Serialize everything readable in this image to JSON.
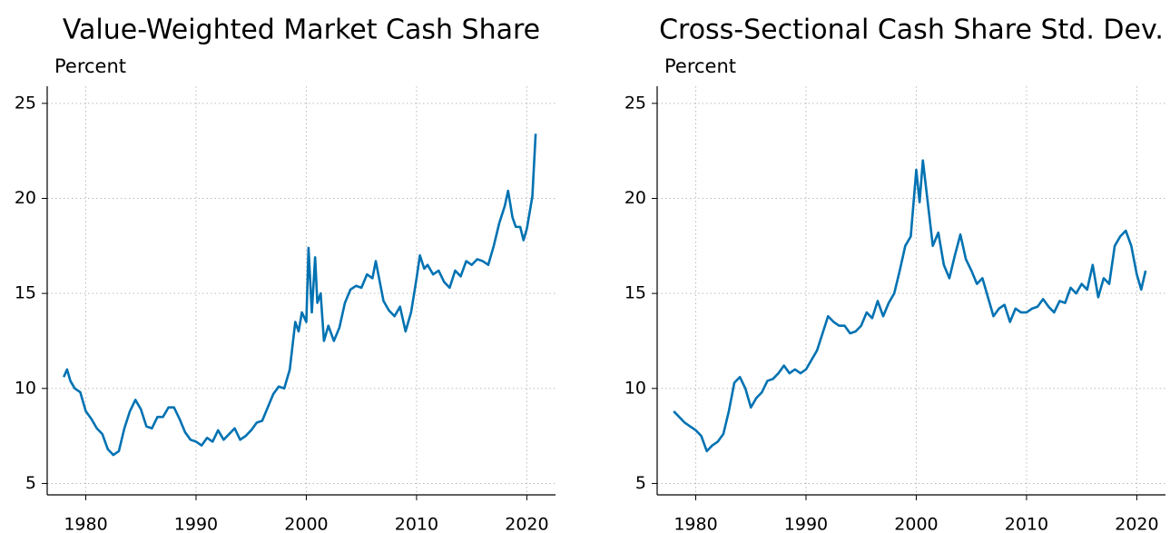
{
  "chart_data": [
    {
      "type": "line",
      "title": "Value-Weighted Market Cash Share",
      "y_label": "Percent",
      "x": [
        1978,
        1978.3,
        1978.6,
        1979,
        1979.5,
        1980,
        1980.5,
        1981,
        1981.5,
        1982,
        1982.5,
        1983,
        1983.5,
        1984,
        1984.5,
        1985,
        1985.5,
        1986,
        1986.5,
        1987,
        1987.5,
        1988,
        1988.5,
        1989,
        1989.5,
        1990,
        1990.5,
        1991,
        1991.5,
        1992,
        1992.5,
        1993,
        1993.5,
        1994,
        1994.5,
        1995,
        1995.5,
        1996,
        1996.5,
        1997,
        1997.5,
        1998,
        1998.5,
        1999,
        1999.3,
        1999.6,
        2000,
        2000.2,
        2000.5,
        2000.8,
        2001,
        2001.3,
        2001.6,
        2002,
        2002.5,
        2003,
        2003.5,
        2004,
        2004.5,
        2005,
        2005.5,
        2006,
        2006.3,
        2006.7,
        2007,
        2007.5,
        2008,
        2008.5,
        2009,
        2009.5,
        2010,
        2010.3,
        2010.7,
        2011,
        2011.5,
        2012,
        2012.5,
        2013,
        2013.5,
        2014,
        2014.5,
        2015,
        2015.5,
        2016,
        2016.5,
        2017,
        2017.5,
        2018,
        2018.3,
        2018.7,
        2019,
        2019.4,
        2019.7,
        2020,
        2020.5,
        2020.8
      ],
      "series": [
        {
          "color": "#0072b2",
          "values": [
            10.6,
            11.0,
            10.4,
            10.0,
            9.8,
            8.8,
            8.4,
            7.9,
            7.6,
            6.8,
            6.5,
            6.7,
            7.9,
            8.8,
            9.4,
            8.9,
            8.0,
            7.9,
            8.5,
            8.5,
            9.0,
            9.0,
            8.4,
            7.7,
            7.3,
            7.2,
            7.0,
            7.4,
            7.2,
            7.8,
            7.3,
            7.6,
            7.9,
            7.3,
            7.5,
            7.8,
            8.2,
            8.3,
            9.0,
            9.7,
            10.1,
            10.0,
            11.0,
            13.5,
            13.0,
            14.0,
            13.5,
            17.4,
            14.0,
            16.9,
            14.5,
            15.0,
            12.5,
            13.3,
            12.5,
            13.2,
            14.5,
            15.2,
            15.4,
            15.3,
            16.0,
            15.8,
            16.7,
            15.5,
            14.6,
            14.1,
            13.8,
            14.3,
            13.0,
            14.0,
            15.8,
            17.0,
            16.3,
            16.5,
            16.0,
            16.2,
            15.6,
            15.3,
            16.2,
            15.9,
            16.7,
            16.5,
            16.8,
            16.7,
            16.5,
            17.5,
            18.7,
            19.6,
            20.4,
            19.0,
            18.5,
            18.5,
            17.8,
            18.4,
            20.1,
            23.4
          ]
        }
      ],
      "xlim": [
        1976.5,
        2022.6
      ],
      "ylim": [
        4.4,
        25.9
      ],
      "xticks": [
        1980,
        1990,
        2000,
        2010,
        2020
      ],
      "yticks": [
        5,
        10,
        15,
        20,
        25
      ],
      "grid": true
    },
    {
      "type": "line",
      "title": "Cross-Sectional Cash Share Std. Dev.",
      "y_label": "Percent",
      "x": [
        1978,
        1978.5,
        1979,
        1979.5,
        1980,
        1980.5,
        1981,
        1981.5,
        1982,
        1982.5,
        1983,
        1983.5,
        1984,
        1984.5,
        1985,
        1985.5,
        1986,
        1986.5,
        1987,
        1987.5,
        1988,
        1988.5,
        1989,
        1989.5,
        1990,
        1990.5,
        1991,
        1991.5,
        1992,
        1992.5,
        1993,
        1993.5,
        1994,
        1994.5,
        1995,
        1995.5,
        1996,
        1996.5,
        1997,
        1997.5,
        1998,
        1998.5,
        1999,
        1999.5,
        2000,
        2000.3,
        2000.6,
        2001,
        2001.5,
        2002,
        2002.5,
        2003,
        2003.5,
        2004,
        2004.5,
        2005,
        2005.5,
        2006,
        2006.5,
        2007,
        2007.5,
        2008,
        2008.5,
        2009,
        2009.5,
        2010,
        2010.5,
        2011,
        2011.5,
        2012,
        2012.5,
        2013,
        2013.5,
        2014,
        2014.5,
        2015,
        2015.5,
        2016,
        2016.5,
        2017,
        2017.5,
        2018,
        2018.5,
        2019,
        2019.5,
        2020,
        2020.4,
        2020.8
      ],
      "series": [
        {
          "color": "#0072b2",
          "values": [
            8.8,
            8.5,
            8.2,
            8.0,
            7.8,
            7.5,
            6.7,
            7.0,
            7.2,
            7.6,
            8.8,
            10.3,
            10.6,
            10.0,
            9.0,
            9.5,
            9.8,
            10.4,
            10.5,
            10.8,
            11.2,
            10.8,
            11.0,
            10.8,
            11.0,
            11.5,
            12.0,
            12.9,
            13.8,
            13.5,
            13.3,
            13.3,
            12.9,
            13.0,
            13.3,
            14.0,
            13.7,
            14.6,
            13.8,
            14.5,
            15.0,
            16.2,
            17.5,
            18.0,
            21.5,
            19.8,
            22.0,
            20.0,
            17.5,
            18.2,
            16.5,
            15.8,
            17.0,
            18.1,
            16.8,
            16.2,
            15.5,
            15.8,
            14.8,
            13.8,
            14.2,
            14.4,
            13.5,
            14.2,
            14.0,
            14.0,
            14.2,
            14.3,
            14.7,
            14.3,
            14.0,
            14.6,
            14.5,
            15.3,
            15.0,
            15.5,
            15.2,
            16.5,
            14.8,
            15.8,
            15.5,
            17.5,
            18.0,
            18.3,
            17.5,
            16.0,
            15.2,
            16.2
          ]
        }
      ],
      "xlim": [
        1976.5,
        2022.6
      ],
      "ylim": [
        4.4,
        25.9
      ],
      "xticks": [
        1980,
        1990,
        2000,
        2010,
        2020
      ],
      "yticks": [
        5,
        10,
        15,
        20,
        25
      ],
      "grid": true
    }
  ]
}
